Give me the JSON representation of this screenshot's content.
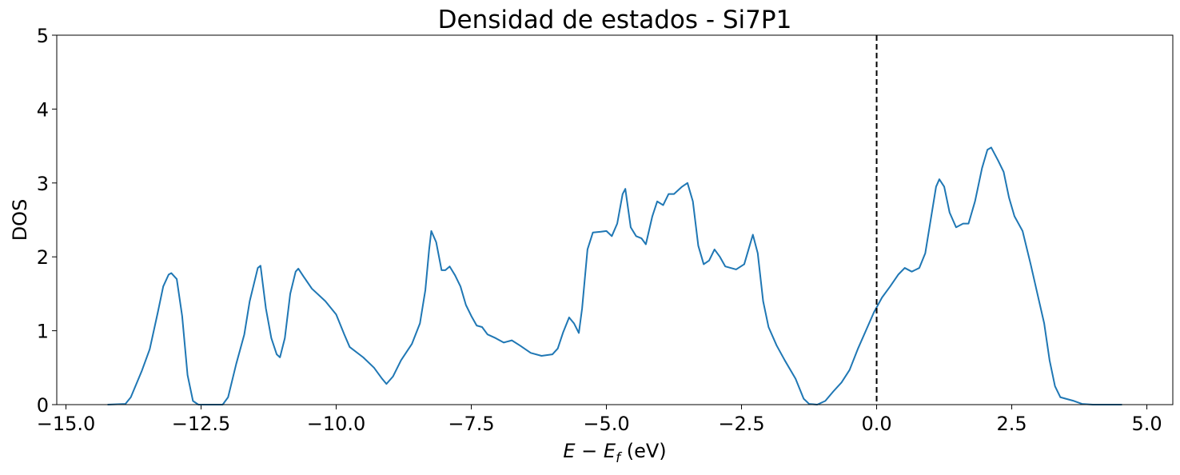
{
  "chart_data": {
    "type": "line",
    "title": "Densidad de estados - Si7P1",
    "x_label": {
      "var": "E − E",
      "sub": "f",
      "unit": " (eV)"
    },
    "y_label": "DOS",
    "x": [
      -14.23,
      -13.9,
      -13.8,
      -13.6,
      -13.45,
      -13.3,
      -13.2,
      -13.1,
      -13.05,
      -12.95,
      -12.85,
      -12.75,
      -12.65,
      -12.55,
      -12.1,
      -12.0,
      -11.85,
      -11.7,
      -11.6,
      -11.45,
      -11.4,
      -11.3,
      -11.2,
      -11.1,
      -11.04,
      -10.95,
      -10.85,
      -10.75,
      -10.7,
      -10.6,
      -10.45,
      -10.2,
      -10.0,
      -9.85,
      -9.75,
      -9.5,
      -9.3,
      -9.15,
      -9.07,
      -8.95,
      -8.8,
      -8.6,
      -8.45,
      -8.35,
      -8.28,
      -8.24,
      -8.15,
      -8.05,
      -7.98,
      -7.9,
      -7.8,
      -7.7,
      -7.6,
      -7.5,
      -7.4,
      -7.3,
      -7.2,
      -7.05,
      -6.9,
      -6.75,
      -6.6,
      -6.4,
      -6.2,
      -6.0,
      -5.9,
      -5.8,
      -5.69,
      -5.6,
      -5.51,
      -5.45,
      -5.35,
      -5.25,
      -5.1,
      -5.0,
      -4.9,
      -4.8,
      -4.7,
      -4.65,
      -4.55,
      -4.45,
      -4.35,
      -4.27,
      -4.15,
      -4.06,
      -3.95,
      -3.85,
      -3.75,
      -3.6,
      -3.5,
      -3.4,
      -3.3,
      -3.2,
      -3.1,
      -3.0,
      -2.9,
      -2.8,
      -2.6,
      -2.45,
      -2.35,
      -2.29,
      -2.2,
      -2.1,
      -2.0,
      -1.85,
      -1.7,
      -1.5,
      -1.35,
      -1.25,
      -1.1,
      -0.95,
      -0.8,
      -0.65,
      -0.5,
      -0.35,
      -0.2,
      -0.05,
      0.1,
      0.25,
      0.4,
      0.52,
      0.65,
      0.79,
      0.9,
      1.0,
      1.1,
      1.16,
      1.25,
      1.35,
      1.47,
      1.6,
      1.7,
      1.82,
      1.95,
      2.05,
      2.12,
      2.25,
      2.35,
      2.45,
      2.55,
      2.7,
      2.85,
      3.0,
      3.1,
      3.2,
      3.3,
      3.4,
      3.5,
      3.65,
      3.8,
      4.0,
      4.54
    ],
    "series": [
      {
        "name": "DOS",
        "color": "#1f77b4",
        "values": [
          0,
          0.01,
          0.1,
          0.45,
          0.75,
          1.25,
          1.6,
          1.76,
          1.78,
          1.7,
          1.2,
          0.4,
          0.05,
          0,
          0,
          0.1,
          0.55,
          0.95,
          1.4,
          1.85,
          1.88,
          1.3,
          0.9,
          0.68,
          0.64,
          0.9,
          1.5,
          1.8,
          1.84,
          1.73,
          1.57,
          1.4,
          1.22,
          0.95,
          0.78,
          0.64,
          0.5,
          0.35,
          0.28,
          0.38,
          0.6,
          0.82,
          1.1,
          1.55,
          2.1,
          2.35,
          2.2,
          1.82,
          1.82,
          1.87,
          1.75,
          1.6,
          1.35,
          1.2,
          1.07,
          1.05,
          0.95,
          0.9,
          0.84,
          0.87,
          0.8,
          0.7,
          0.66,
          0.68,
          0.76,
          0.98,
          1.18,
          1.1,
          0.97,
          1.3,
          2.1,
          2.33,
          2.34,
          2.35,
          2.28,
          2.45,
          2.85,
          2.92,
          2.4,
          2.28,
          2.25,
          2.17,
          2.55,
          2.75,
          2.7,
          2.85,
          2.85,
          2.95,
          3.0,
          2.75,
          2.15,
          1.9,
          1.95,
          2.1,
          2.0,
          1.87,
          1.83,
          1.9,
          2.15,
          2.3,
          2.05,
          1.4,
          1.05,
          0.8,
          0.6,
          0.35,
          0.08,
          0.01,
          0,
          0.05,
          0.18,
          0.3,
          0.47,
          0.75,
          1.0,
          1.25,
          1.45,
          1.6,
          1.76,
          1.85,
          1.8,
          1.85,
          2.05,
          2.5,
          2.95,
          3.05,
          2.95,
          2.6,
          2.4,
          2.45,
          2.45,
          2.75,
          3.2,
          3.45,
          3.48,
          3.3,
          3.15,
          2.8,
          2.55,
          2.35,
          1.9,
          1.42,
          1.1,
          0.6,
          0.25,
          0.1,
          0.08,
          0.05,
          0.01,
          0,
          0
        ]
      }
    ],
    "xlim": [
      -15.17,
      5.48
    ],
    "xticks": [
      {
        "value": -15,
        "label": "−15.0"
      },
      {
        "value": -12.5,
        "label": "−12.5"
      },
      {
        "value": -10,
        "label": "−10.0"
      },
      {
        "value": -7.5,
        "label": "−7.5"
      },
      {
        "value": -5,
        "label": "−5.0"
      },
      {
        "value": -2.5,
        "label": "−2.5"
      },
      {
        "value": 0,
        "label": "0.0"
      },
      {
        "value": 2.5,
        "label": "2.5"
      },
      {
        "value": 5,
        "label": "5.0"
      }
    ],
    "ylim": [
      0,
      5
    ],
    "yticks": [
      0,
      1,
      2,
      3,
      4,
      5
    ],
    "vline": {
      "x": 0,
      "color": "#000000",
      "dashed": true
    },
    "grid": false
  }
}
